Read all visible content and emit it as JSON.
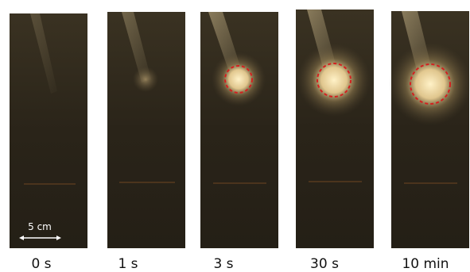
{
  "panels": [
    {
      "label": "0 s"
    },
    {
      "label": "1 s"
    },
    {
      "label": "3 s"
    },
    {
      "label": "30 s"
    },
    {
      "label": "10 min"
    }
  ],
  "scale_bar": {
    "label": "5 cm"
  }
}
